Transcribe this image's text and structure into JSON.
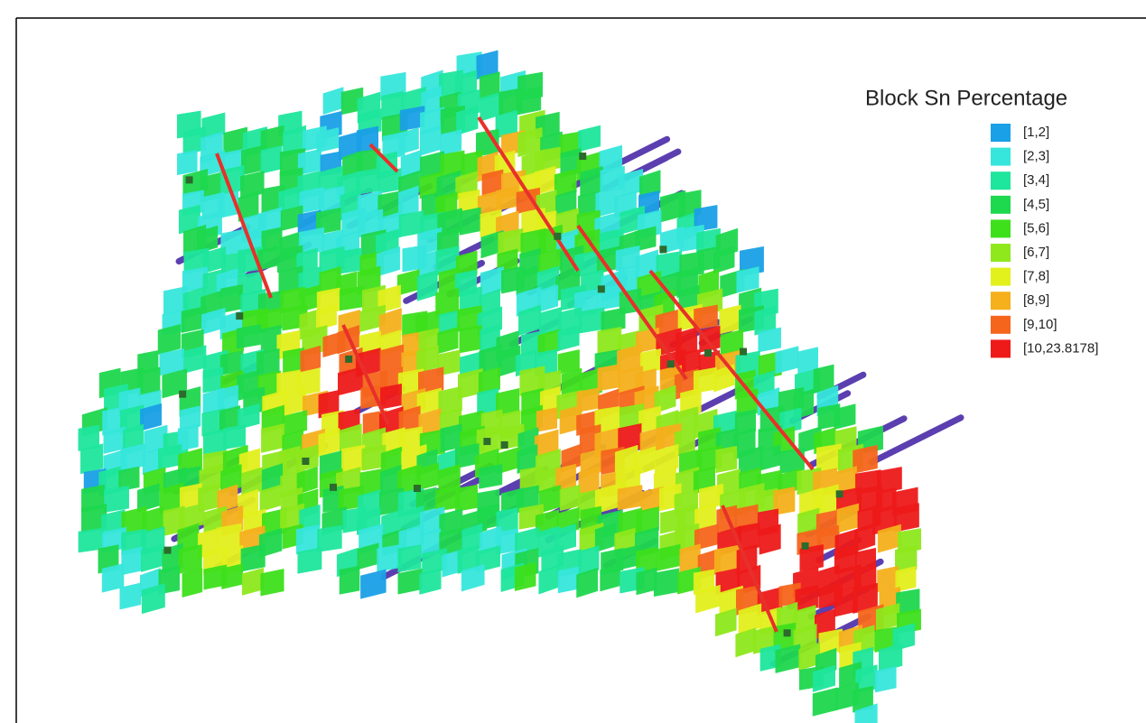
{
  "legend": {
    "title": "Block Sn Percentage",
    "items": [
      {
        "label": "[1,2]",
        "color": "#1aa0e6"
      },
      {
        "label": "[2,3]",
        "color": "#36e6dc"
      },
      {
        "label": "[3,4]",
        "color": "#1ee69c"
      },
      {
        "label": "[4,5]",
        "color": "#1ed84e"
      },
      {
        "label": "[5,6]",
        "color": "#3ee01c"
      },
      {
        "label": "[6,7]",
        "color": "#8ee81c"
      },
      {
        "label": "[7,8]",
        "color": "#e2f01c"
      },
      {
        "label": "[8,9]",
        "color": "#f5b01c"
      },
      {
        "label": "[9,10]",
        "color": "#f5661c"
      },
      {
        "label": "[10,23.8178]",
        "color": "#ee1a1a"
      }
    ]
  }
}
